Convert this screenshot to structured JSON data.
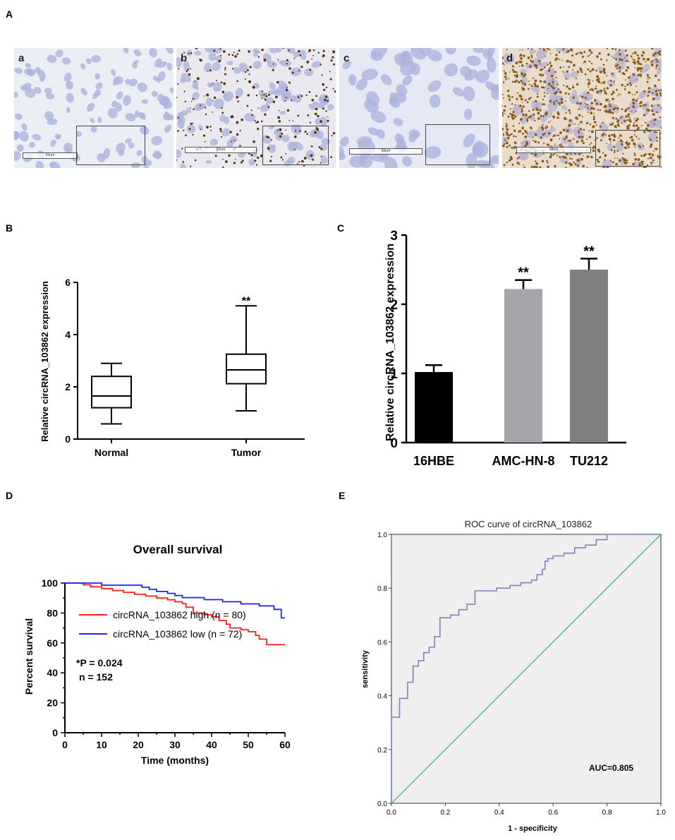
{
  "panel_labels": {
    "A": "A",
    "B": "B",
    "C": "C",
    "D": "D",
    "E": "E"
  },
  "micrographs": [
    {
      "label": "a",
      "scale": "60um",
      "stain": "none",
      "bg": "#eceef6"
    },
    {
      "label": "b",
      "scale": "60um",
      "stain": "sparse",
      "bg": "#ebe9f0"
    },
    {
      "label": "c",
      "scale": "60um",
      "stain": "none",
      "bg": "#e6e8f3"
    },
    {
      "label": "d",
      "scale": "60um",
      "stain": "dense",
      "bg": "#e9dccb"
    }
  ],
  "chart_data": [
    {
      "id": "B",
      "type": "box",
      "ylabel": "Relative circRNA_103862  expression",
      "ylim": [
        0,
        6
      ],
      "yticks": [
        "0",
        "2",
        "4",
        "6"
      ],
      "categories": [
        "Normal",
        "Tumor"
      ],
      "boxes": [
        {
          "name": "Normal",
          "min": 0.58,
          "q1": 1.2,
          "median": 1.65,
          "q3": 2.4,
          "max": 2.9,
          "annotation": ""
        },
        {
          "name": "Tumor",
          "min": 1.08,
          "q1": 2.12,
          "median": 2.65,
          "q3": 3.25,
          "max": 5.1,
          "annotation": "**"
        }
      ]
    },
    {
      "id": "C",
      "type": "bar",
      "ylabel": "Relative circRNA_103862  expression",
      "ylim": [
        0,
        3
      ],
      "yticks": [
        "0",
        "1",
        "2",
        "3"
      ],
      "categories": [
        "16HBE",
        "AMC-HN-8",
        "TU212"
      ],
      "values": [
        1.02,
        2.22,
        2.5
      ],
      "errors": [
        0.1,
        0.13,
        0.16
      ],
      "annotations": [
        "",
        "**",
        "**"
      ],
      "colors": [
        "#000000",
        "#a5a5aa",
        "#808080"
      ]
    },
    {
      "id": "D",
      "type": "line",
      "title": "Overall survival",
      "xlabel": "Time (months)",
      "ylabel": "Percent survival",
      "xlim": [
        0,
        60
      ],
      "ylim": [
        0,
        100
      ],
      "xticks": [
        "0",
        "10",
        "20",
        "30",
        "40",
        "50",
        "60"
      ],
      "yticks": [
        "0",
        "20",
        "40",
        "60",
        "80",
        "100"
      ],
      "series": [
        {
          "name": "circRNA_103862 high (n = 80)",
          "color": "#ff2020",
          "x": [
            0,
            5,
            7,
            10,
            13,
            16,
            19,
            22,
            25,
            28,
            30,
            32,
            33,
            35,
            38,
            40,
            42,
            44,
            45,
            48,
            50,
            52,
            53,
            55,
            60
          ],
          "y": [
            100,
            98.8,
            97.5,
            96.3,
            95,
            93.8,
            92.5,
            91.3,
            90,
            88.8,
            87.5,
            86.3,
            83.8,
            80,
            78.8,
            77.5,
            75,
            72.5,
            70,
            68.8,
            67.5,
            65,
            62.5,
            58.8,
            58.8
          ]
        },
        {
          "name": "circRNA_103862 low (n = 72)",
          "color": "#2020ff",
          "x": [
            0,
            10,
            19,
            21,
            23,
            25,
            28,
            30,
            32,
            35,
            38,
            40,
            43,
            48,
            50,
            53,
            57,
            59,
            60
          ],
          "y": [
            100,
            98.6,
            98.6,
            97.2,
            95.8,
            94.4,
            93.1,
            91.7,
            90.3,
            90.3,
            88.9,
            88.9,
            87.5,
            86.1,
            86.1,
            84.7,
            82.4,
            76.7,
            76.7
          ]
        }
      ],
      "annotations": [
        "*P = 0.024",
        "n = 152"
      ]
    },
    {
      "id": "E",
      "type": "line",
      "title": "ROC curve of circRNA_103862",
      "xlabel": "1 - specificity",
      "ylabel": "sensitivity",
      "xlim": [
        0,
        1
      ],
      "ylim": [
        0,
        1
      ],
      "xticks": [
        "0.0",
        "0.2",
        "0.4",
        "0.6",
        "0.8",
        "1.0"
      ],
      "yticks": [
        "0.0",
        "0.2",
        "0.4",
        "0.6",
        "0.8",
        "1.0"
      ],
      "series": [
        {
          "name": "ROC",
          "color": "#7a86b8",
          "x": [
            0,
            0,
            0.03,
            0.03,
            0.06,
            0.06,
            0.08,
            0.08,
            0.1,
            0.1,
            0.12,
            0.12,
            0.14,
            0.14,
            0.16,
            0.16,
            0.18,
            0.18,
            0.22,
            0.22,
            0.25,
            0.25,
            0.28,
            0.28,
            0.31,
            0.31,
            0.34,
            0.34,
            0.39,
            0.39,
            0.44,
            0.44,
            0.48,
            0.48,
            0.52,
            0.52,
            0.54,
            0.54,
            0.56,
            0.56,
            0.57,
            0.57,
            0.58,
            0.58,
            0.6,
            0.6,
            0.64,
            0.64,
            0.68,
            0.68,
            0.72,
            0.72,
            0.76,
            0.76,
            0.8,
            0.8,
            1.0
          ],
          "y": [
            0,
            0.32,
            0.32,
            0.39,
            0.39,
            0.45,
            0.45,
            0.51,
            0.51,
            0.53,
            0.53,
            0.56,
            0.56,
            0.58,
            0.58,
            0.62,
            0.62,
            0.69,
            0.69,
            0.7,
            0.7,
            0.72,
            0.72,
            0.74,
            0.74,
            0.79,
            0.79,
            0.79,
            0.79,
            0.8,
            0.8,
            0.81,
            0.81,
            0.82,
            0.82,
            0.83,
            0.83,
            0.85,
            0.85,
            0.87,
            0.87,
            0.9,
            0.9,
            0.91,
            0.91,
            0.92,
            0.92,
            0.93,
            0.93,
            0.95,
            0.95,
            0.96,
            0.96,
            0.98,
            0.98,
            1.0,
            1.0
          ]
        },
        {
          "name": "Reference",
          "color": "#3cb371",
          "x": [
            0,
            1
          ],
          "y": [
            0,
            1
          ]
        }
      ],
      "annotations": [
        "AUC=0.805"
      ]
    }
  ]
}
